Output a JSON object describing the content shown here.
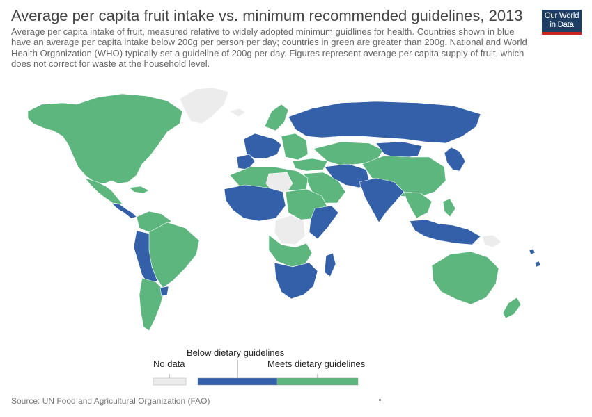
{
  "header": {
    "title": "Average per capita fruit intake vs. minimum recommended guidelines, 2013",
    "subtitle": "Average per capita intake of fruit, measured relative to widely adopted minimum guidlines for health. Countries shown in blue have an average per capita intake below 200g per person per day; countries in green are greater than 200g. National and World Health Organization (WHO) typically set a guideline of 200g per day. Figures represent average per capita supply of fruit, which does not correct for waste at the household level."
  },
  "logo": {
    "line1": "Our World",
    "line2": "in Data"
  },
  "legend": {
    "no_data_label": "No data",
    "below_label": "Below dietary guidelines",
    "meets_label": "Meets dietary guidelines"
  },
  "colors": {
    "no_data": "#ececec",
    "below": "#3360a9",
    "meets": "#5db67d",
    "border": "#ffffff"
  },
  "source": "Source: UN Food and Agricultural Organization (FAO)"
}
